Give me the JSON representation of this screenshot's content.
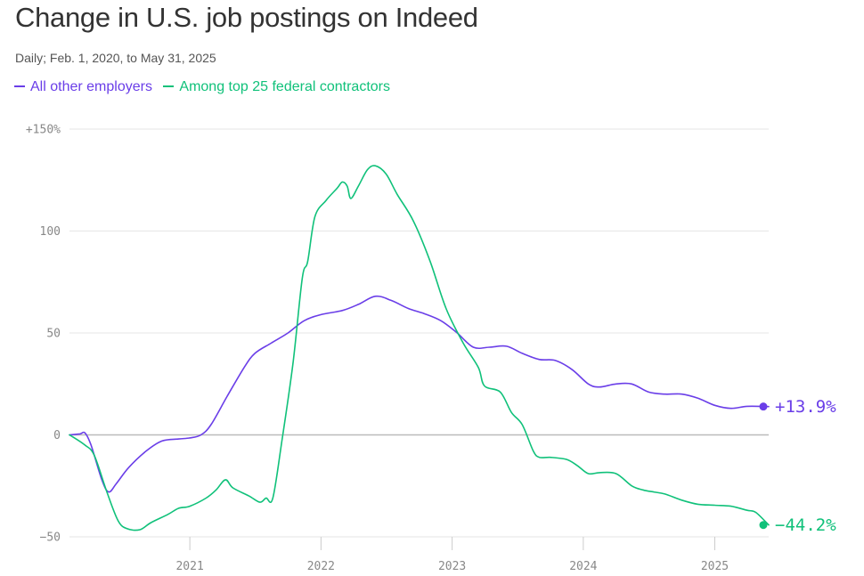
{
  "header": {
    "title": "Change in U.S. job postings on Indeed",
    "subtitle": "Daily; Feb. 1, 2020, to May 31, 2025"
  },
  "colors": {
    "all_other": "#6a3ee8",
    "federal": "#10c17a",
    "grid": "#e6e6e6",
    "zero_line": "#bbbbbb",
    "tick_text": "#888888"
  },
  "chart_data": {
    "type": "line",
    "title": "Change in U.S. job postings on Indeed",
    "subtitle": "Daily; Feb. 1, 2020, to May 31, 2025",
    "xlabel": "",
    "ylabel": "",
    "xlim": [
      "2020-02-01",
      "2025-05-31"
    ],
    "ylim": [
      -50,
      150
    ],
    "y_ticks": [
      {
        "value": 150,
        "label": "+150%"
      },
      {
        "value": 100,
        "label": "100"
      },
      {
        "value": 50,
        "label": "50"
      },
      {
        "value": 0,
        "label": "0"
      },
      {
        "value": -50,
        "label": "−50"
      }
    ],
    "x_ticks": [
      {
        "value": "2021-01-01",
        "label": "2021"
      },
      {
        "value": "2022-01-01",
        "label": "2022"
      },
      {
        "value": "2023-01-01",
        "label": "2023"
      },
      {
        "value": "2024-01-01",
        "label": "2024"
      },
      {
        "value": "2025-01-01",
        "label": "2025"
      }
    ],
    "grid": true,
    "legend_position": "top-left",
    "series": [
      {
        "name": "All other employers",
        "color": "#6a3ee8",
        "end_label": "+13.9%",
        "points": [
          [
            "2020-02-01",
            0
          ],
          [
            "2020-03-01",
            0.5
          ],
          [
            "2020-03-15",
            1
          ],
          [
            "2020-04-01",
            -5
          ],
          [
            "2020-05-01",
            -22
          ],
          [
            "2020-05-20",
            -28
          ],
          [
            "2020-06-10",
            -24
          ],
          [
            "2020-07-15",
            -16
          ],
          [
            "2020-09-01",
            -8
          ],
          [
            "2020-10-15",
            -3
          ],
          [
            "2020-12-01",
            -2
          ],
          [
            "2021-01-01",
            -1.5
          ],
          [
            "2021-02-01",
            0
          ],
          [
            "2021-03-01",
            5
          ],
          [
            "2021-04-15",
            19
          ],
          [
            "2021-06-01",
            33
          ],
          [
            "2021-07-01",
            40
          ],
          [
            "2021-08-15",
            45
          ],
          [
            "2021-10-01",
            50
          ],
          [
            "2021-11-15",
            56
          ],
          [
            "2022-01-01",
            59
          ],
          [
            "2022-03-01",
            61
          ],
          [
            "2022-04-15",
            64
          ],
          [
            "2022-06-01",
            68
          ],
          [
            "2022-07-15",
            66
          ],
          [
            "2022-09-01",
            62
          ],
          [
            "2022-10-15",
            59.5
          ],
          [
            "2022-12-01",
            56
          ],
          [
            "2023-01-15",
            50
          ],
          [
            "2023-03-01",
            43
          ],
          [
            "2023-04-15",
            43
          ],
          [
            "2023-06-01",
            43.5
          ],
          [
            "2023-07-15",
            40
          ],
          [
            "2023-09-01",
            37
          ],
          [
            "2023-10-15",
            36.5
          ],
          [
            "2023-12-01",
            32
          ],
          [
            "2024-01-15",
            25
          ],
          [
            "2024-02-15",
            23.5
          ],
          [
            "2024-04-01",
            25
          ],
          [
            "2024-05-15",
            25
          ],
          [
            "2024-07-01",
            21
          ],
          [
            "2024-08-15",
            20
          ],
          [
            "2024-10-01",
            20
          ],
          [
            "2024-11-15",
            18
          ],
          [
            "2025-01-01",
            14.5
          ],
          [
            "2025-02-15",
            13
          ],
          [
            "2025-04-01",
            14
          ],
          [
            "2025-05-31",
            13.9
          ]
        ]
      },
      {
        "name": "Among top 25 federal contractors",
        "color": "#10c17a",
        "end_label": "−44.2%",
        "points": [
          [
            "2020-02-01",
            0
          ],
          [
            "2020-03-15",
            -5
          ],
          [
            "2020-04-10",
            -10
          ],
          [
            "2020-05-15",
            -28
          ],
          [
            "2020-06-15",
            -42
          ],
          [
            "2020-07-10",
            -46
          ],
          [
            "2020-08-15",
            -46.5
          ],
          [
            "2020-09-15",
            -43
          ],
          [
            "2020-11-01",
            -39
          ],
          [
            "2020-12-01",
            -36
          ],
          [
            "2021-01-01",
            -35
          ],
          [
            "2021-02-15",
            -31
          ],
          [
            "2021-03-15",
            -27
          ],
          [
            "2021-04-10",
            -22
          ],
          [
            "2021-05-01",
            -26
          ],
          [
            "2021-06-15",
            -30
          ],
          [
            "2021-07-15",
            -33
          ],
          [
            "2021-08-01",
            -31
          ],
          [
            "2021-08-20",
            -31
          ],
          [
            "2021-09-15",
            -2
          ],
          [
            "2021-10-15",
            35
          ],
          [
            "2021-11-10",
            77
          ],
          [
            "2021-11-25",
            85
          ],
          [
            "2021-12-15",
            107
          ],
          [
            "2022-01-15",
            115
          ],
          [
            "2022-02-15",
            121
          ],
          [
            "2022-03-01",
            124
          ],
          [
            "2022-03-15",
            122
          ],
          [
            "2022-03-25",
            116
          ],
          [
            "2022-04-15",
            122
          ],
          [
            "2022-05-10",
            130
          ],
          [
            "2022-06-01",
            132
          ],
          [
            "2022-07-01",
            128
          ],
          [
            "2022-08-01",
            118
          ],
          [
            "2022-09-15",
            105
          ],
          [
            "2022-11-01",
            85
          ],
          [
            "2022-12-15",
            62
          ],
          [
            "2023-02-01",
            45
          ],
          [
            "2023-03-15",
            33
          ],
          [
            "2023-04-01",
            24
          ],
          [
            "2023-05-15",
            21
          ],
          [
            "2023-06-15",
            11
          ],
          [
            "2023-07-15",
            5
          ],
          [
            "2023-08-15",
            -8
          ],
          [
            "2023-09-01",
            -11
          ],
          [
            "2023-10-01",
            -11
          ],
          [
            "2023-11-15",
            -12
          ],
          [
            "2023-12-15",
            -15
          ],
          [
            "2024-01-15",
            -19
          ],
          [
            "2024-02-15",
            -18.5
          ],
          [
            "2024-04-01",
            -19
          ],
          [
            "2024-05-15",
            -25
          ],
          [
            "2024-06-15",
            -27
          ],
          [
            "2024-07-15",
            -28
          ],
          [
            "2024-08-15",
            -29
          ],
          [
            "2024-10-01",
            -32
          ],
          [
            "2024-11-15",
            -34
          ],
          [
            "2025-01-01",
            -34.5
          ],
          [
            "2025-02-15",
            -35
          ],
          [
            "2025-04-01",
            -37
          ],
          [
            "2025-04-25",
            -38
          ],
          [
            "2025-05-31",
            -44.2
          ]
        ]
      }
    ]
  }
}
